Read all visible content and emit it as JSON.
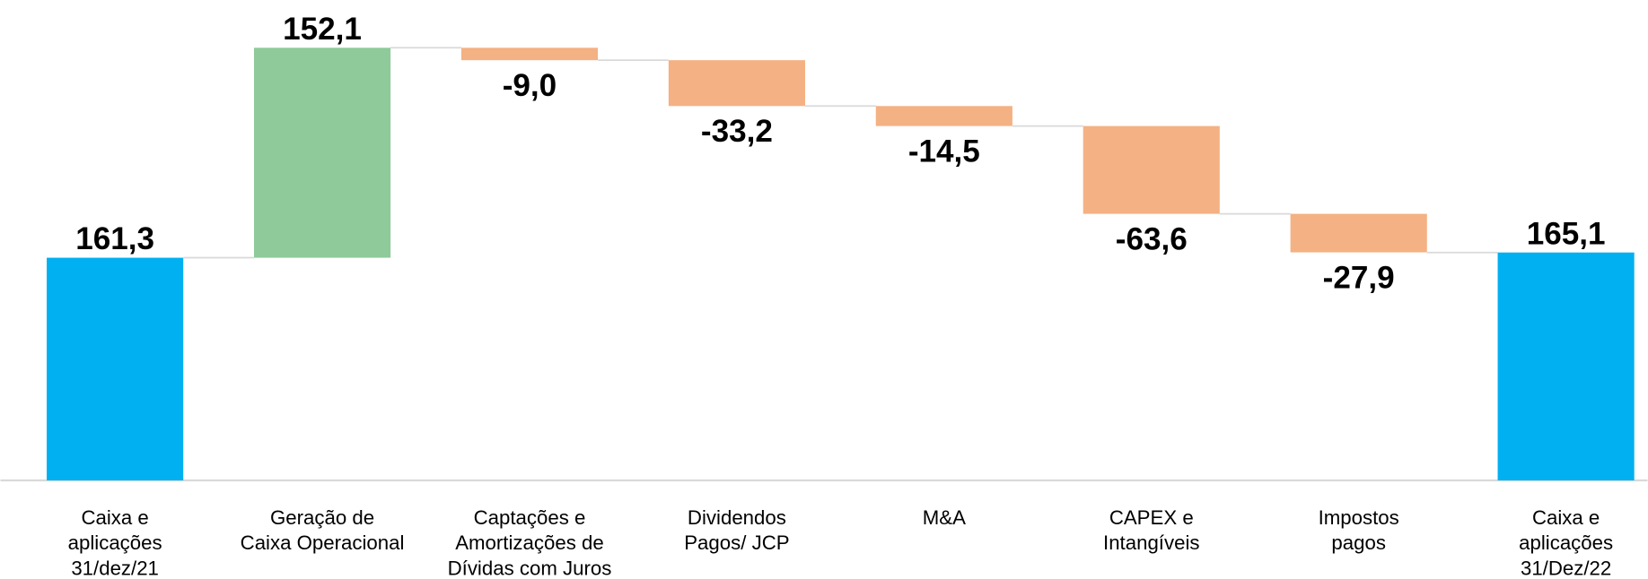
{
  "chart_data": {
    "type": "waterfall",
    "categories": [
      [
        "Caixa e",
        "aplicações",
        "31/dez/21"
      ],
      [
        "Geração de",
        "Caixa Operacional"
      ],
      [
        "Captações e",
        "Amortizações de",
        "Dívidas com Juros"
      ],
      [
        "Dividendos",
        "Pagos/ JCP"
      ],
      [
        "M&A"
      ],
      [
        "CAPEX e",
        "Intangíveis"
      ],
      [
        "Impostos",
        "pagos"
      ],
      [
        "Caixa e",
        "aplicações",
        "31/Dez/22"
      ]
    ],
    "values": [
      161.3,
      152.1,
      -9.0,
      -33.2,
      -14.5,
      -63.6,
      -27.9,
      165.1
    ],
    "value_labels": [
      "161,3",
      "152,1",
      "-9,0",
      "-33,2",
      "-14,5",
      "-63,6",
      "-27,9",
      "165,1"
    ],
    "measure": [
      "total",
      "relative",
      "relative",
      "relative",
      "relative",
      "relative",
      "relative",
      "total"
    ],
    "colors": {
      "total": "#00b0f0",
      "increase": "#8fca9a",
      "decrease": "#f4b183"
    },
    "ylim": [
      0,
      348
    ]
  }
}
